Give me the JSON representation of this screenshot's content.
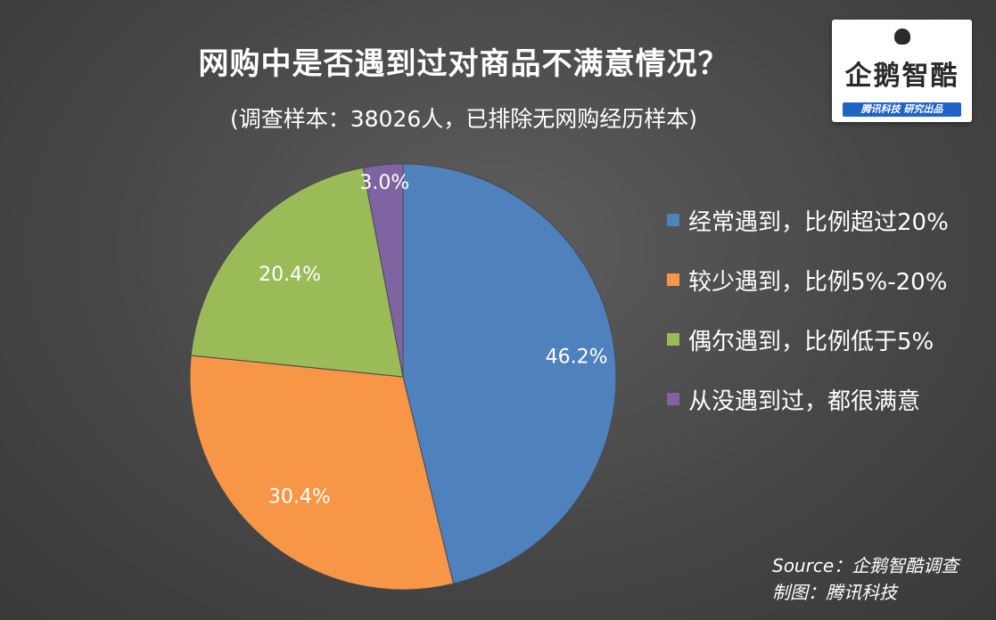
{
  "chart_data": {
    "type": "pie",
    "title": "网购中是否遇到过对商品不满意情况？",
    "subtitle": "(调查样本：38026人，已排除无网购经历样本)",
    "categories": [
      "经常遇到，比例超过20%",
      "较少遇到，比例5%-20%",
      "偶尔遇到，比例低于5%",
      "从没遇到过，都很满意"
    ],
    "values": [
      46.2,
      30.4,
      20.4,
      3.0
    ],
    "labels": [
      "46.2%",
      "30.4%",
      "20.4%",
      "3.0%"
    ],
    "colors": [
      "#4f81bd",
      "#f79646",
      "#9bbb59",
      "#8064a2"
    ],
    "legend_placement": "right"
  },
  "source": {
    "line1": "Source：企鹅智酷调查",
    "line2": "制图：腾讯科技"
  },
  "logo": {
    "main": "企鹅智酷",
    "bar": "腾讯科技  研究出品"
  }
}
